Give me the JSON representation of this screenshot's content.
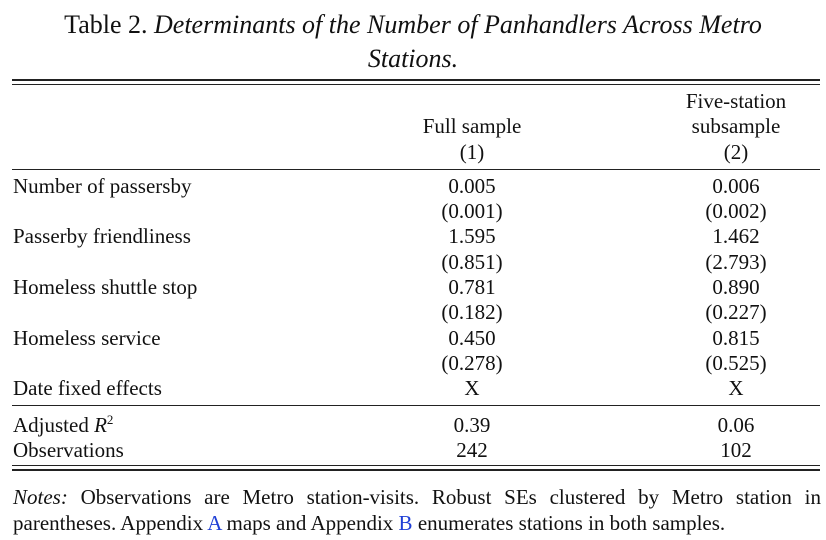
{
  "table": {
    "label": "Table 2.",
    "caption_line1": "Determinants of the Number of Panhandlers Across Metro",
    "caption_line2": "Stations.",
    "columns": [
      {
        "header_lines": [
          "",
          "Full sample"
        ],
        "number": "(1)"
      },
      {
        "header_lines": [
          "Five-station",
          "subsample"
        ],
        "number": "(2)"
      }
    ],
    "rows": [
      {
        "label": "Number of passersby",
        "values": [
          "0.005",
          "0.006"
        ],
        "se": [
          "(0.001)",
          "(0.002)"
        ]
      },
      {
        "label": "Passerby friendliness",
        "values": [
          "1.595",
          "1.462"
        ],
        "se": [
          "(0.851)",
          "(2.793)"
        ]
      },
      {
        "label": "Homeless shuttle stop",
        "values": [
          "0.781",
          "0.890"
        ],
        "se": [
          "(0.182)",
          "(0.227)"
        ]
      },
      {
        "label": "Homeless service",
        "values": [
          "0.450",
          "0.815"
        ],
        "se": [
          "(0.278)",
          "(0.525)"
        ]
      },
      {
        "label": "Date fixed effects",
        "values": [
          "X",
          "X"
        ],
        "se": [
          "",
          ""
        ]
      }
    ],
    "stats": [
      {
        "label_prefix": "Adjusted ",
        "label_var": "R",
        "label_sup": "2",
        "values": [
          "0.39",
          "0.06"
        ]
      },
      {
        "label": "Observations",
        "values": [
          "242",
          "102"
        ]
      }
    ]
  },
  "notes": {
    "label": "Notes:",
    "text_part1": " Observations are Metro station-visits. Robust SEs clustered by Metro station in parentheses. Appendix ",
    "link_a": "A",
    "text_part2": " maps and Appendix ",
    "link_b": "B",
    "text_part3": " enumerates stations in both samples."
  }
}
